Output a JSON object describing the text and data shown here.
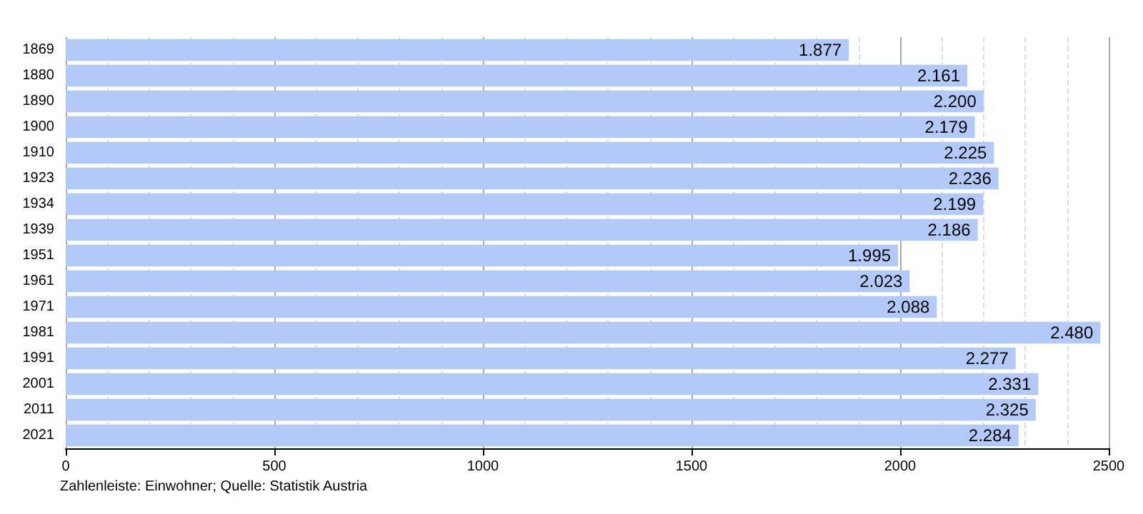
{
  "chart_data": {
    "type": "bar",
    "orientation": "horizontal",
    "categories": [
      "1869",
      "1880",
      "1890",
      "1900",
      "1910",
      "1923",
      "1934",
      "1939",
      "1951",
      "1961",
      "1971",
      "1981",
      "1991",
      "2001",
      "2011",
      "2021"
    ],
    "values": [
      1877,
      2161,
      2200,
      2179,
      2225,
      2236,
      2199,
      2186,
      1995,
      2023,
      2088,
      2480,
      2277,
      2331,
      2325,
      2284
    ],
    "value_labels": [
      "1.877",
      "2.161",
      "2.200",
      "2.179",
      "2.225",
      "2.236",
      "2.199",
      "2.186",
      "1.995",
      "2.023",
      "2.088",
      "2.480",
      "2.277",
      "2.331",
      "2.325",
      "2.284"
    ],
    "color": "#b3c9f7",
    "xlim": [
      0,
      2500
    ],
    "xticks": [
      0,
      500,
      1000,
      1500,
      2000,
      2500
    ],
    "grid": "x",
    "annotations": [
      "Zahlenleiste: Einwohner; Quelle: Statistik Austria"
    ]
  }
}
